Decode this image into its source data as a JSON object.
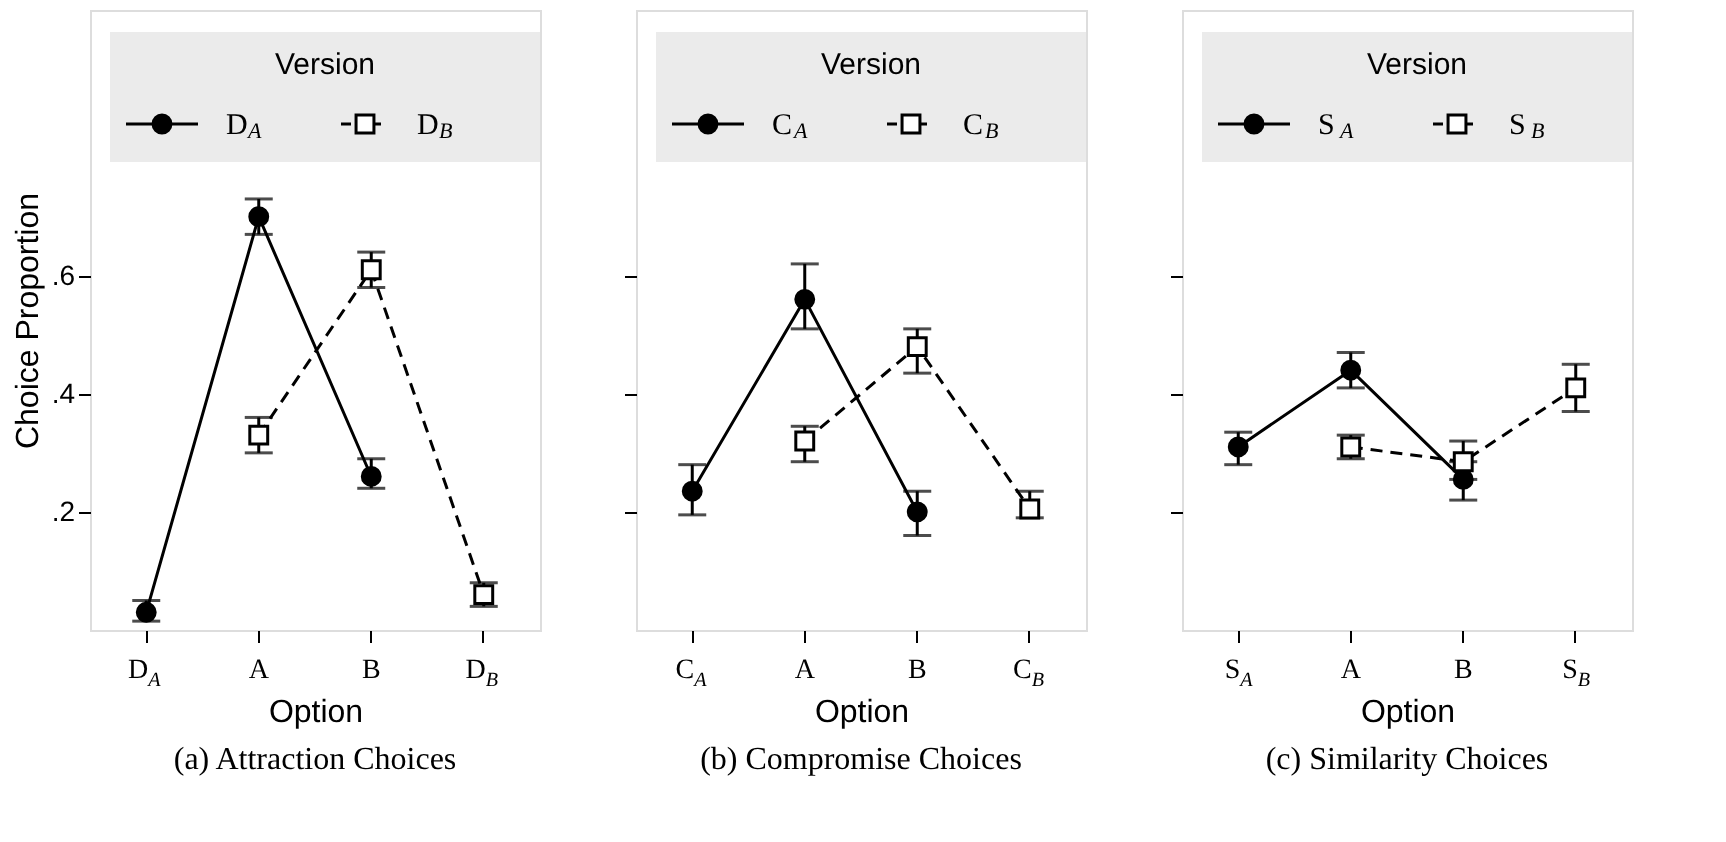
{
  "chart_data": [
    {
      "type": "line",
      "title": "(a) Attraction Choices",
      "xlabel": "Option",
      "ylabel": "Choice Proportion",
      "legend_title": "Version",
      "legend": "top",
      "categories": [
        "D$_{A}$",
        "A",
        "B",
        "D$_{B}$"
      ],
      "ylim": [
        0,
        1.05
      ],
      "yticks": [
        {
          "value": 0.2,
          "label": ".2"
        },
        {
          "value": 0.4,
          "label": ".4"
        },
        {
          "value": 0.6,
          "label": ".6"
        }
      ],
      "series": [
        {
          "name": "D$_{A}$",
          "color": "#000000",
          "marker": "circle",
          "line_style": "solid",
          "values": [
            0.03,
            0.7,
            0.26,
            null
          ],
          "errors": [
            [
              0.015,
              0.05
            ],
            [
              0.67,
              0.73
            ],
            [
              0.24,
              0.29
            ],
            null
          ]
        },
        {
          "name": "D$_{B}$",
          "color": "#000000",
          "marker": "square",
          "line_style": "dashed",
          "values": [
            null,
            0.33,
            0.61,
            0.06
          ],
          "errors": [
            null,
            [
              0.3,
              0.36
            ],
            [
              0.58,
              0.64
            ],
            [
              0.04,
              0.08
            ]
          ]
        }
      ]
    },
    {
      "type": "line",
      "title": "(b) Compromise Choices",
      "xlabel": "Option",
      "legend_title": "Version",
      "legend": "top",
      "tick_labels": "x",
      "categories": [
        "C$_{A}$",
        "A",
        "B",
        "C$_{B}$"
      ],
      "ylim": [
        0,
        1.05
      ],
      "yticks": [
        {
          "value": 0.2,
          "label": null
        },
        {
          "value": 0.4,
          "label": null
        },
        {
          "value": 0.6,
          "label": null
        }
      ],
      "series": [
        {
          "name": "C$_{A}$",
          "color": "#000000",
          "marker": "circle",
          "line_style": "solid",
          "values": [
            0.235,
            0.56,
            0.2,
            null
          ],
          "errors": [
            [
              0.195,
              0.28
            ],
            [
              0.51,
              0.62
            ],
            [
              0.16,
              0.235
            ],
            null
          ]
        },
        {
          "name": "C$_{B}$",
          "color": "#000000",
          "marker": "square",
          "line_style": "dashed",
          "values": [
            null,
            0.32,
            0.48,
            0.205
          ],
          "errors": [
            null,
            [
              0.285,
              0.345
            ],
            [
              0.435,
              0.51
            ],
            [
              0.19,
              0.235
            ]
          ]
        }
      ]
    },
    {
      "type": "line",
      "title": "(c) Similarity Choices",
      "xlabel": "Option",
      "legend_title": "Version",
      "legend": "top",
      "tick_labels": "x",
      "categories": [
        "S$_{A}$",
        "A",
        "B",
        "S$_{B}$"
      ],
      "ylim": [
        0,
        1.05
      ],
      "yticks": [
        {
          "value": 0.2,
          "label": null
        },
        {
          "value": 0.4,
          "label": null
        },
        {
          "value": 0.6,
          "label": null
        }
      ],
      "series": [
        {
          "name": "S$_{A}$",
          "color": "#000000",
          "marker": "circle",
          "line_style": "solid",
          "values": [
            0.31,
            0.44,
            0.255,
            null
          ],
          "errors": [
            [
              0.28,
              0.335
            ],
            [
              0.41,
              0.47
            ],
            [
              0.22,
              0.255
            ],
            null
          ]
        },
        {
          "name": "S$_{B}$",
          "color": "#000000",
          "marker": "square",
          "line_style": "dashed",
          "values": [
            null,
            0.31,
            0.285,
            0.41
          ],
          "errors": [
            null,
            [
              0.29,
              0.33
            ],
            [
              0.285,
              0.32
            ],
            [
              0.37,
              0.45
            ]
          ]
        }
      ]
    }
  ]
}
